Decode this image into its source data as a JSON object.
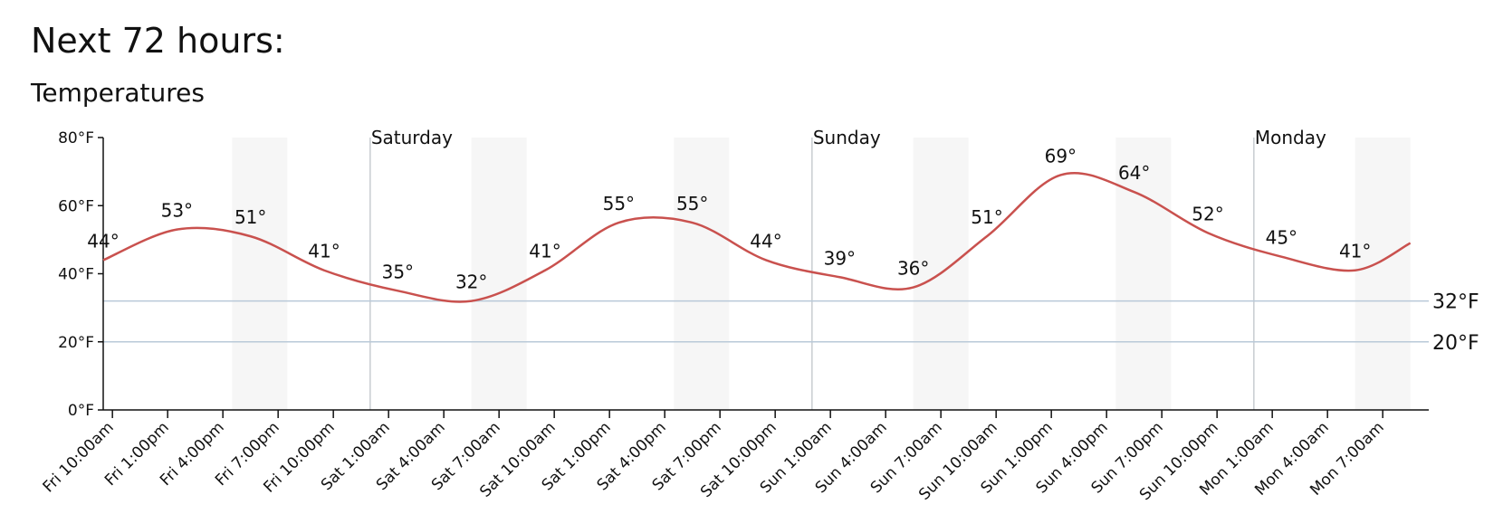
{
  "heading": "Next 72 hours:",
  "chart_data": {
    "type": "line",
    "title": "Temperatures",
    "x": [
      0,
      4,
      8,
      12,
      16,
      20,
      24,
      28,
      32,
      36,
      40,
      44,
      48,
      52,
      56,
      60,
      64,
      68,
      71
    ],
    "values": [
      44,
      53,
      51,
      41,
      35,
      32,
      41,
      55,
      55,
      44,
      39,
      36,
      51,
      69,
      64,
      52,
      45,
      41,
      49
    ],
    "value_labels": [
      "44°",
      "53°",
      "51°",
      "41°",
      "35°",
      "32°",
      "41°",
      "55°",
      "55°",
      "44°",
      "39°",
      "36°",
      "51°",
      "69°",
      "64°",
      "52°",
      "45°",
      "41°",
      null
    ],
    "color": "#c9514e",
    "xlim": [
      0,
      72
    ],
    "xticks": [
      {
        "value": 0.5,
        "label": "Fri 10:00am"
      },
      {
        "value": 3.5,
        "label": "Fri 1:00pm"
      },
      {
        "value": 6.5,
        "label": "Fri 4:00pm"
      },
      {
        "value": 9.5,
        "label": "Fri 7:00pm"
      },
      {
        "value": 12.5,
        "label": "Fri 10:00pm"
      },
      {
        "value": 15.5,
        "label": "Sat 1:00am"
      },
      {
        "value": 18.5,
        "label": "Sat 4:00am"
      },
      {
        "value": 21.5,
        "label": "Sat 7:00am"
      },
      {
        "value": 24.5,
        "label": "Sat 10:00am"
      },
      {
        "value": 27.5,
        "label": "Sat 1:00pm"
      },
      {
        "value": 30.5,
        "label": "Sat 4:00pm"
      },
      {
        "value": 33.5,
        "label": "Sat 7:00pm"
      },
      {
        "value": 36.5,
        "label": "Sat 10:00pm"
      },
      {
        "value": 39.5,
        "label": "Sun 1:00am"
      },
      {
        "value": 42.5,
        "label": "Sun 4:00am"
      },
      {
        "value": 45.5,
        "label": "Sun 7:00am"
      },
      {
        "value": 48.5,
        "label": "Sun 10:00am"
      },
      {
        "value": 51.5,
        "label": "Sun 1:00pm"
      },
      {
        "value": 54.5,
        "label": "Sun 4:00pm"
      },
      {
        "value": 57.5,
        "label": "Sun 7:00pm"
      },
      {
        "value": 60.5,
        "label": "Sun 10:00pm"
      },
      {
        "value": 63.5,
        "label": "Mon 1:00am"
      },
      {
        "value": 66.5,
        "label": "Mon 4:00am"
      },
      {
        "value": 69.5,
        "label": "Mon 7:00am"
      }
    ],
    "ylim": [
      0,
      80
    ],
    "yticks": [
      {
        "value": 0,
        "label": "0°F"
      },
      {
        "value": 20,
        "label": "20°F"
      },
      {
        "value": 40,
        "label": "40°F"
      },
      {
        "value": 60,
        "label": "60°F"
      },
      {
        "value": 80,
        "label": "80°F"
      }
    ],
    "reference_lines": [
      {
        "value": 32,
        "label": "32°F"
      },
      {
        "value": 20,
        "label": "20°F"
      }
    ],
    "day_markers": [
      {
        "x": 14.5,
        "label": "Saturday"
      },
      {
        "x": 38.5,
        "label": "Sunday"
      },
      {
        "x": 62.5,
        "label": "Monday"
      }
    ],
    "shaded_bands": [
      [
        7,
        10
      ],
      [
        20,
        23
      ],
      [
        31,
        34
      ],
      [
        44,
        47
      ],
      [
        55,
        58
      ],
      [
        68,
        71
      ]
    ]
  }
}
